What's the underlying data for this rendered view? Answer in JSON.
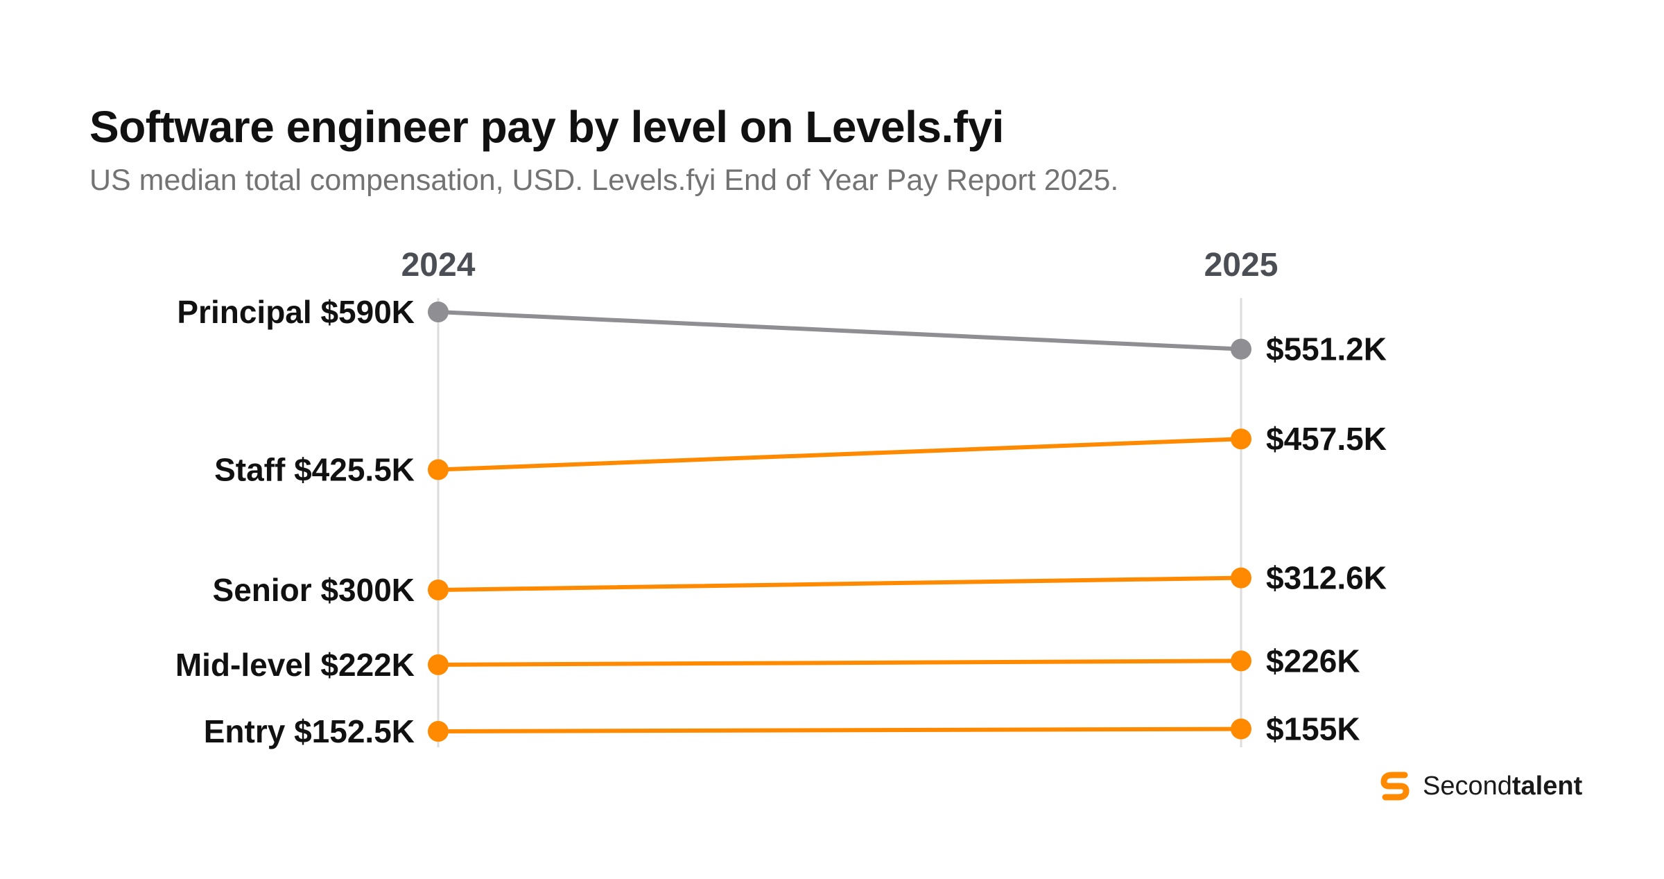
{
  "title": "Software engineer pay by level on Levels.fyi",
  "subtitle": "US median total compensation, USD. Levels.fyi End of Year Pay Report 2025.",
  "brand": {
    "name_light": "Second",
    "name_bold": "talent",
    "icon": "secondtalent-logo-icon"
  },
  "colors": {
    "highlight": "#FF8A00",
    "muted": "#8E8E93",
    "axis": "#DCDCDC",
    "label": "#111111",
    "year": "#4B4E55"
  },
  "chart_data": {
    "type": "slope",
    "x": [
      "2024",
      "2025"
    ],
    "series": [
      {
        "name": "Principal",
        "values": [
          590,
          551.2
        ],
        "labels": [
          "Principal $590K",
          "$551.2K"
        ],
        "color": "#8E8E93"
      },
      {
        "name": "Staff",
        "values": [
          425.5,
          457.5
        ],
        "labels": [
          "Staff $425.5K",
          "$457.5K"
        ],
        "color": "#FF8A00"
      },
      {
        "name": "Senior",
        "values": [
          300,
          312.6
        ],
        "labels": [
          "Senior $300K",
          "$312.6K"
        ],
        "color": "#FF8A00"
      },
      {
        "name": "Mid-level",
        "values": [
          222,
          226
        ],
        "labels": [
          "Mid-level $222K",
          "$226K"
        ],
        "color": "#FF8A00"
      },
      {
        "name": "Entry",
        "values": [
          152.5,
          155
        ],
        "labels": [
          "Entry $152.5K",
          "$155K"
        ],
        "color": "#FF8A00"
      }
    ],
    "unit": "USD thousands",
    "ylim": [
      152.5,
      590
    ],
    "grid": false
  }
}
